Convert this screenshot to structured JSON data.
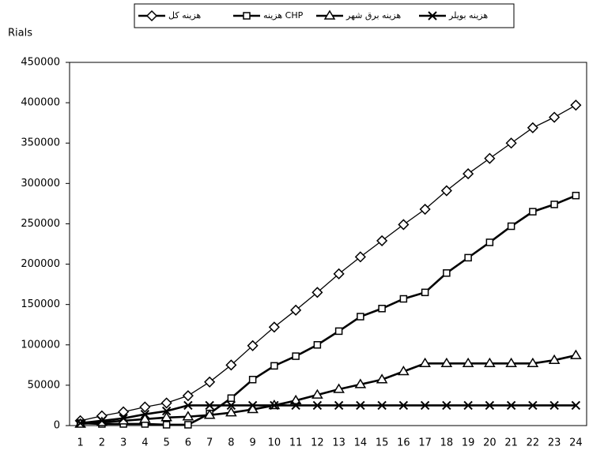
{
  "chart_data": {
    "type": "line",
    "y_label": "Rials",
    "categories": [
      1,
      2,
      3,
      4,
      5,
      6,
      7,
      8,
      9,
      10,
      11,
      12,
      13,
      14,
      15,
      16,
      17,
      18,
      19,
      20,
      21,
      22,
      23,
      24
    ],
    "series": [
      {
        "name": "هزینه کل",
        "marker": "diamond",
        "color": "#000000",
        "values": [
          6000,
          12000,
          17000,
          23000,
          28000,
          37000,
          54000,
          75000,
          99000,
          122000,
          143000,
          165000,
          188000,
          209000,
          229000,
          249000,
          268000,
          291000,
          312000,
          331000,
          350000,
          369000,
          382000,
          397000
        ]
      },
      {
        "name": "هزینه CHP",
        "marker": "square",
        "color": "#000000",
        "values": [
          3000,
          2000,
          2000,
          2000,
          1000,
          1000,
          15000,
          34000,
          57000,
          74000,
          86000,
          100000,
          117000,
          135000,
          145000,
          157000,
          165000,
          189000,
          208000,
          227000,
          247000,
          265000,
          274000,
          285000
        ]
      },
      {
        "name": "هزینه برق شهر",
        "marker": "triangle",
        "color": "#000000",
        "values": [
          2000,
          4000,
          6000,
          8000,
          10000,
          11000,
          13000,
          16000,
          20000,
          25000,
          31000,
          38000,
          45000,
          51000,
          57000,
          67000,
          77000,
          77000,
          77000,
          77000,
          77000,
          77000,
          81000,
          87000
        ]
      },
      {
        "name": "هزینه بویلر",
        "marker": "x",
        "color": "#000000",
        "values": [
          3000,
          6000,
          9000,
          14000,
          18000,
          25000,
          25000,
          25000,
          25000,
          25000,
          25000,
          25000,
          25000,
          25000,
          25000,
          25000,
          25000,
          25000,
          25000,
          25000,
          25000,
          25000,
          25000,
          25000
        ]
      }
    ],
    "ylim": [
      0,
      450000
    ],
    "yticks": [
      0,
      50000,
      100000,
      150000,
      200000,
      250000,
      300000,
      350000,
      400000,
      450000
    ],
    "grid": false
  }
}
